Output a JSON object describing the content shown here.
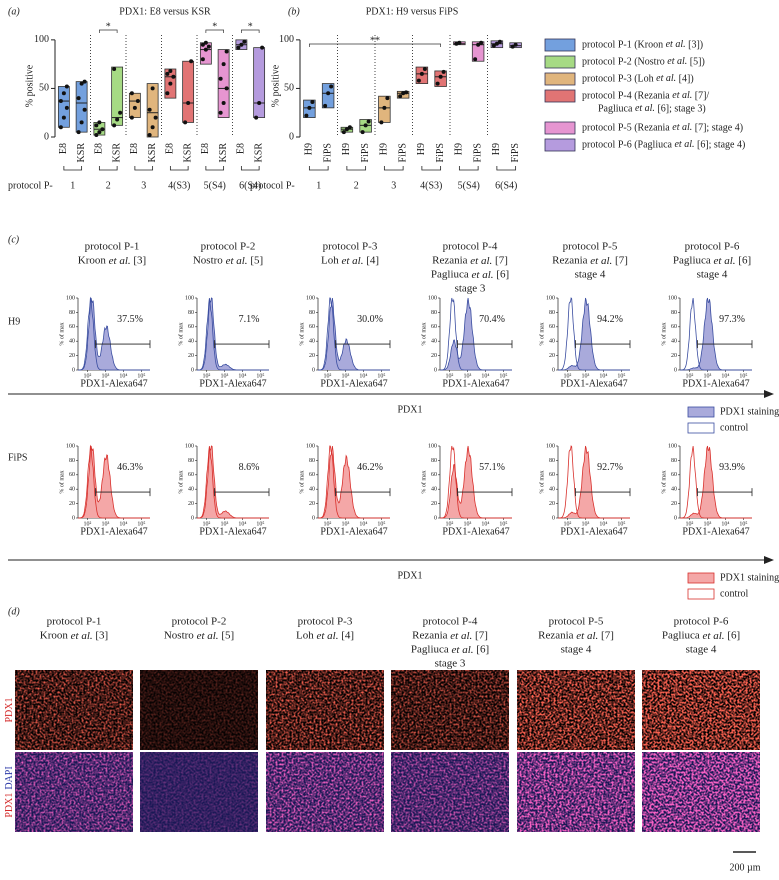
{
  "chart_data": [
    {
      "type": "box",
      "label": "(a)",
      "title": "PDX1: E8 versus KSR",
      "ylabel": "% positive",
      "ylim": [
        0,
        105
      ],
      "yticks": [
        0,
        50,
        100
      ],
      "categories": [
        "E8",
        "KSR",
        "E8",
        "KSR",
        "E8",
        "KSR",
        "E8",
        "KSR",
        "E8",
        "KSR",
        "E8",
        "KSR"
      ],
      "group_title": "protocol P-",
      "groups": [
        "1",
        "2",
        "3",
        "4(S3)",
        "5(S4)",
        "6(S4)"
      ],
      "colors": [
        "#5b8fd8",
        "#96d46e",
        "#dba866",
        "#dc5c5c",
        "#e283c9",
        "#a88ad8"
      ],
      "boxes": [
        {
          "min": 10,
          "median": 37,
          "max": 52,
          "points": [
            10,
            20,
            30,
            37,
            45,
            52
          ]
        },
        {
          "min": 5,
          "median": 35,
          "max": 57,
          "points": [
            5,
            15,
            28,
            40,
            55,
            57
          ]
        },
        {
          "min": 2,
          "median": 8,
          "max": 15,
          "points": [
            2,
            5,
            8,
            12,
            15
          ]
        },
        {
          "min": 12,
          "median": 20,
          "max": 72,
          "points": [
            12,
            18,
            25,
            70
          ]
        },
        {
          "min": 20,
          "median": 37,
          "max": 45,
          "points": [
            20,
            30,
            37,
            45
          ]
        },
        {
          "min": 0,
          "median": 25,
          "max": 55,
          "points": [
            2,
            10,
            20,
            28,
            50
          ]
        },
        {
          "min": 40,
          "median": 62,
          "max": 70,
          "points": [
            45,
            55,
            62,
            65,
            68
          ]
        },
        {
          "min": 15,
          "median": 35,
          "max": 78,
          "points": [
            15,
            35,
            78
          ]
        },
        {
          "min": 75,
          "median": 90,
          "max": 97,
          "points": [
            80,
            90,
            93,
            95,
            97
          ]
        },
        {
          "min": 20,
          "median": 50,
          "max": 90,
          "points": [
            25,
            35,
            50,
            60,
            75,
            88
          ]
        },
        {
          "min": 90,
          "median": 95,
          "max": 100,
          "points": [
            92,
            95,
            98
          ]
        },
        {
          "min": 20,
          "median": 35,
          "max": 92,
          "points": [
            20,
            35,
            92
          ]
        }
      ],
      "significance": [
        {
          "label": "*",
          "span": [
            "2"
          ]
        },
        {
          "label": "*",
          "span": [
            "5(S4)"
          ]
        },
        {
          "label": "*",
          "span": [
            "6(S4)"
          ]
        }
      ]
    },
    {
      "type": "box",
      "label": "(b)",
      "title": "PDX1: H9 versus FiPS",
      "ylabel": "% positive",
      "ylim": [
        0,
        105
      ],
      "yticks": [
        0,
        50,
        100
      ],
      "categories": [
        "H9",
        "FiPS",
        "H9",
        "FiPS",
        "H9",
        "FiPS",
        "H9",
        "FiPS",
        "H9",
        "FiPS",
        "H9",
        "FiPS"
      ],
      "group_title": "protocol P-",
      "groups": [
        "1",
        "2",
        "3",
        "4(S3)",
        "5(S4)",
        "6(S4)"
      ],
      "colors": [
        "#5b8fd8",
        "#96d46e",
        "#dba866",
        "#dc5c5c",
        "#e283c9",
        "#a88ad8"
      ],
      "boxes": [
        {
          "min": 20,
          "median": 30,
          "max": 38,
          "points": [
            22,
            30,
            36
          ]
        },
        {
          "min": 30,
          "median": 45,
          "max": 55,
          "points": [
            32,
            45,
            52
          ]
        },
        {
          "min": 5,
          "median": 8,
          "max": 10,
          "points": [
            5,
            8,
            10
          ]
        },
        {
          "min": 5,
          "median": 12,
          "max": 18,
          "points": [
            5,
            12,
            16
          ]
        },
        {
          "min": 15,
          "median": 30,
          "max": 42,
          "points": [
            15,
            30,
            40
          ]
        },
        {
          "min": 40,
          "median": 45,
          "max": 47,
          "points": [
            42,
            45,
            46
          ]
        },
        {
          "min": 55,
          "median": 65,
          "max": 72,
          "points": [
            58,
            65,
            70
          ]
        },
        {
          "min": 52,
          "median": 62,
          "max": 68,
          "points": [
            55,
            62,
            67
          ]
        },
        {
          "min": 95,
          "median": 96,
          "max": 98,
          "points": [
            96,
            97
          ]
        },
        {
          "min": 78,
          "median": 95,
          "max": 98,
          "points": [
            80,
            95,
            97
          ]
        },
        {
          "min": 92,
          "median": 96,
          "max": 99,
          "points": [
            94,
            96,
            98
          ]
        },
        {
          "min": 92,
          "median": 94,
          "max": 97,
          "points": [
            93,
            95
          ]
        }
      ],
      "significance": [
        {
          "label": "**",
          "span": [
            "1",
            "4(S3)"
          ]
        }
      ]
    },
    {
      "type": "flow",
      "row_label": "H9",
      "values": [
        37.5,
        7.1,
        30.0,
        70.4,
        94.2,
        97.3
      ],
      "value_labels": [
        "37.5%",
        "7.1%",
        "30.0%",
        "70.4%",
        "94.2%",
        "97.3%"
      ],
      "xlabel": "PDX1-Alexa647",
      "ylabel": "% of max",
      "xscale": "log",
      "xlim": [
        30,
        300000
      ],
      "xticks": [
        {
          "value": 100,
          "label": "10²"
        },
        {
          "value": 1000,
          "label": "10³"
        },
        {
          "value": 10000,
          "label": "10⁴"
        },
        {
          "value": 100000,
          "label": "10⁵"
        }
      ],
      "ylim": [
        0,
        100
      ],
      "yticks": [
        0,
        20,
        40,
        60,
        80,
        100
      ],
      "axis_label": "PDX1",
      "series": [
        {
          "name": "PDX1 staining",
          "color": "#3a4da0",
          "fill": "#a9aadb"
        },
        {
          "name": "control",
          "color": "#3a4da0"
        }
      ]
    },
    {
      "type": "flow",
      "row_label": "FiPS",
      "values": [
        46.3,
        8.6,
        46.2,
        57.1,
        92.7,
        93.9
      ],
      "value_labels": [
        "46.3%",
        "8.6%",
        "46.2%",
        "57.1%",
        "92.7%",
        "93.9%"
      ],
      "xlabel": "PDX1-Alexa647",
      "ylabel": "% of max",
      "xscale": "log",
      "xlim": [
        30,
        300000
      ],
      "xticks": [
        {
          "value": 100,
          "label": "10²"
        },
        {
          "value": 1000,
          "label": "10³"
        },
        {
          "value": 10000,
          "label": "10⁴"
        },
        {
          "value": 100000,
          "label": "10⁵"
        }
      ],
      "ylim": [
        0,
        100
      ],
      "yticks": [
        0,
        20,
        40,
        60,
        80,
        100
      ],
      "axis_label": "PDX1",
      "series": [
        {
          "name": "PDX1 staining",
          "color": "#d8302c",
          "fill": "#f4a7a7"
        },
        {
          "name": "control",
          "color": "#d8302c"
        }
      ]
    }
  ],
  "protocol_legend": [
    {
      "lines": [
        "protocol P-1 (Kroon et al. [3])"
      ],
      "color": "#5b8fd8"
    },
    {
      "lines": [
        "protocol P-2 (Nostro et al. [5])"
      ],
      "color": "#96d46e"
    },
    {
      "lines": [
        "protocol P-3 (Loh et al. [4])"
      ],
      "color": "#dba866"
    },
    {
      "lines": [
        "protocol P-4 (Rezania et al. [7]/",
        "Pagliuca et al. [6]; stage 3)"
      ],
      "color": "#dc5c5c"
    },
    {
      "lines": [
        "protocol P-5 (Rezania et al. [7]; stage 4)"
      ],
      "color": "#e283c9"
    },
    {
      "lines": [
        "protocol P-6 (Pagliuca et al. [6]; stage 4)"
      ],
      "color": "#a88ad8"
    }
  ],
  "protocol_headers": [
    [
      "protocol P-1",
      "Kroon et al. [3]"
    ],
    [
      "protocol P-2",
      "Nostro et al. [5]"
    ],
    [
      "protocol P-3",
      "Loh et al. [4]"
    ],
    [
      "protocol P-4",
      "Rezania et al. [7]",
      "Pagliuca et al. [6]",
      "stage 3"
    ],
    [
      "protocol P-5",
      "Rezania et al. [7]",
      "stage 4"
    ],
    [
      "protocol P-6",
      "Pagliuca et al. [6]",
      "stage 4"
    ]
  ],
  "panel_c": {
    "label": "(c)"
  },
  "panel_d": {
    "label": "(d)",
    "rows": [
      [
        {
          "text": "PDX1",
          "color": "#d42a2a"
        }
      ],
      [
        {
          "text": "PDX1",
          "color": "#d42a2a"
        },
        {
          "text": "DAPI",
          "color": "#2c3aa8"
        }
      ]
    ],
    "scale_bar": "200 µm"
  }
}
